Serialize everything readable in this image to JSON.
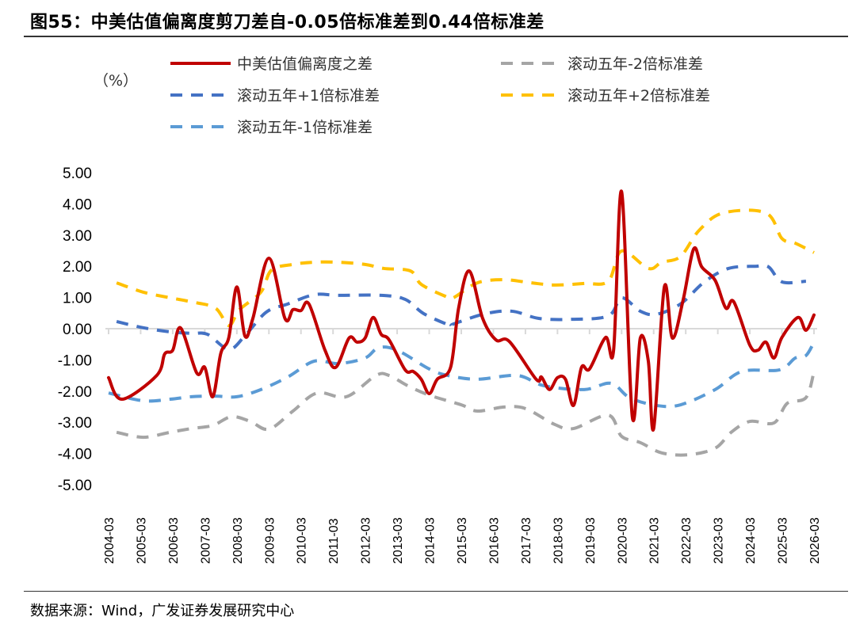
{
  "title": "图55：中美估值偏离度剪刀差自-0.05倍标准差到0.44倍标准差",
  "source": "数据来源：Wind，广发证券发展研究中心",
  "chart_data": {
    "type": "line",
    "title": "图55：中美估值偏离度剪刀差自-0.05倍标准差到0.44倍标准差",
    "ylabel": "（%）",
    "xlabel": "",
    "ylim": [
      -5,
      5
    ],
    "yticks": [
      "5.00",
      "4.00",
      "3.00",
      "2.00",
      "1.00",
      "0.00",
      "-1.00",
      "-2.00",
      "-3.00",
      "-4.00",
      "-5.00"
    ],
    "xticks": [
      "2004-03",
      "2005-03",
      "2006-03",
      "2007-03",
      "2008-03",
      "2009-03",
      "2010-03",
      "2011-03",
      "2012-03",
      "2013-03",
      "2014-03",
      "2015-03",
      "2016-03",
      "2017-03",
      "2018-03",
      "2019-03",
      "2020-03",
      "2021-03",
      "2022-03",
      "2023-03",
      "2024-03",
      "2025-03",
      "2026-03"
    ],
    "grid": false,
    "legend_position": "top",
    "series": [
      {
        "name": "中美估值偏离度之差",
        "color": "#C00000",
        "dash": false,
        "points": [
          [
            "2004-03",
            -1.57
          ],
          [
            "2004-08",
            -2.26
          ],
          [
            "2005-09",
            -1.5
          ],
          [
            "2005-12",
            -0.81
          ],
          [
            "2006-03",
            -0.69
          ],
          [
            "2006-06",
            0.02
          ],
          [
            "2006-12",
            -1.42
          ],
          [
            "2007-03",
            -1.24
          ],
          [
            "2007-06",
            -2.18
          ],
          [
            "2007-09",
            -0.79
          ],
          [
            "2007-12",
            -0.28
          ],
          [
            "2008-03",
            1.34
          ],
          [
            "2008-06",
            -0.23
          ],
          [
            "2008-09",
            0.33
          ],
          [
            "2009-03",
            2.26
          ],
          [
            "2009-09",
            0.33
          ],
          [
            "2009-12",
            0.61
          ],
          [
            "2010-03",
            0.58
          ],
          [
            "2010-06",
            0.79
          ],
          [
            "2010-12",
            -0.69
          ],
          [
            "2011-04",
            -1.24
          ],
          [
            "2011-09",
            -0.3
          ],
          [
            "2011-12",
            -0.43
          ],
          [
            "2012-03",
            -0.3
          ],
          [
            "2012-06",
            0.36
          ],
          [
            "2012-09",
            -0.18
          ],
          [
            "2012-12",
            -0.36
          ],
          [
            "2013-06",
            -1.32
          ],
          [
            "2013-09",
            -1.37
          ],
          [
            "2013-12",
            -1.62
          ],
          [
            "2014-03",
            -2.08
          ],
          [
            "2014-06",
            -1.62
          ],
          [
            "2014-11",
            -1.24
          ],
          [
            "2015-02",
            0.66
          ],
          [
            "2015-06",
            1.85
          ],
          [
            "2015-11",
            0.33
          ],
          [
            "2016-04",
            -0.36
          ],
          [
            "2016-09",
            -0.41
          ],
          [
            "2017-07",
            -1.62
          ],
          [
            "2017-09",
            -1.55
          ],
          [
            "2017-12",
            -1.95
          ],
          [
            "2018-03",
            -1.57
          ],
          [
            "2018-06",
            -1.62
          ],
          [
            "2018-09",
            -2.46
          ],
          [
            "2018-12",
            -1.24
          ],
          [
            "2019-03",
            -1.29
          ],
          [
            "2019-09",
            -0.28
          ],
          [
            "2019-12",
            -0.69
          ],
          [
            "2020-03",
            4.39
          ],
          [
            "2020-07",
            -2.82
          ],
          [
            "2020-10",
            -0.3
          ],
          [
            "2021-01",
            -1.04
          ],
          [
            "2021-03",
            -3.2
          ],
          [
            "2021-07",
            1.34
          ],
          [
            "2021-10",
            -0.3
          ],
          [
            "2022-02",
            0.91
          ],
          [
            "2022-06",
            2.56
          ],
          [
            "2022-09",
            1.98
          ],
          [
            "2023-02",
            1.55
          ],
          [
            "2023-06",
            0.66
          ],
          [
            "2023-09",
            0.86
          ],
          [
            "2024-03",
            -0.53
          ],
          [
            "2024-06",
            -0.69
          ],
          [
            "2024-09",
            -0.43
          ],
          [
            "2024-12",
            -0.94
          ],
          [
            "2025-03",
            -0.28
          ],
          [
            "2025-09",
            0.36
          ],
          [
            "2025-12",
            -0.05
          ],
          [
            "2026-03",
            0.44
          ]
        ]
      },
      {
        "name": "滚动五年-2倍标准差",
        "color": "#A5A5A5",
        "dash": true,
        "points": [
          [
            "2004-06",
            -3.32
          ],
          [
            "2005-04",
            -3.48
          ],
          [
            "2006-02",
            -3.32
          ],
          [
            "2006-10",
            -3.2
          ],
          [
            "2007-06",
            -3.1
          ],
          [
            "2008-01",
            -2.82
          ],
          [
            "2008-08",
            -2.97
          ],
          [
            "2009-03",
            -3.22
          ],
          [
            "2009-12",
            -2.64
          ],
          [
            "2010-09",
            -2.06
          ],
          [
            "2011-08",
            -2.18
          ],
          [
            "2012-07",
            -1.5
          ],
          [
            "2012-12",
            -1.5
          ],
          [
            "2013-07",
            -1.83
          ],
          [
            "2014-03",
            -2.13
          ],
          [
            "2015-03",
            -2.44
          ],
          [
            "2015-09",
            -2.64
          ],
          [
            "2016-07",
            -2.51
          ],
          [
            "2017-03",
            -2.56
          ],
          [
            "2018-02",
            -3.07
          ],
          [
            "2018-09",
            -3.2
          ],
          [
            "2019-10",
            -2.77
          ],
          [
            "2020-03",
            -3.45
          ],
          [
            "2020-10",
            -3.65
          ],
          [
            "2021-06",
            -3.98
          ],
          [
            "2022-04",
            -4.04
          ],
          [
            "2023-02",
            -3.83
          ],
          [
            "2023-08",
            -3.32
          ],
          [
            "2024-03",
            -2.97
          ],
          [
            "2024-12",
            -3.02
          ],
          [
            "2025-05",
            -2.39
          ],
          [
            "2025-12",
            -2.21
          ],
          [
            "2026-03",
            -1.37
          ]
        ]
      },
      {
        "name": "滚动五年+1倍标准差",
        "color": "#4472C4",
        "dash": true,
        "points": [
          [
            "2004-06",
            0.23
          ],
          [
            "2005-04",
            0.03
          ],
          [
            "2006-02",
            -0.1
          ],
          [
            "2006-10",
            -0.15
          ],
          [
            "2007-04",
            -0.18
          ],
          [
            "2007-12",
            -0.66
          ],
          [
            "2008-06",
            -0.23
          ],
          [
            "2009-02",
            0.53
          ],
          [
            "2009-10",
            0.79
          ],
          [
            "2010-08",
            1.09
          ],
          [
            "2011-05",
            1.07
          ],
          [
            "2012-09",
            1.07
          ],
          [
            "2013-06",
            0.94
          ],
          [
            "2014-01",
            0.48
          ],
          [
            "2014-11",
            0.1
          ],
          [
            "2014-12",
            0.15
          ],
          [
            "2015-12",
            0.48
          ],
          [
            "2016-10",
            0.56
          ],
          [
            "2017-08",
            0.33
          ],
          [
            "2018-08",
            0.3
          ],
          [
            "2019-10",
            0.41
          ],
          [
            "2020-03",
            0.99
          ],
          [
            "2020-10",
            0.56
          ],
          [
            "2021-04",
            0.46
          ],
          [
            "2022-01",
            0.79
          ],
          [
            "2022-10",
            1.5
          ],
          [
            "2023-07",
            1.93
          ],
          [
            "2024-05",
            2.0
          ],
          [
            "2024-10",
            1.98
          ],
          [
            "2025-03",
            1.5
          ],
          [
            "2025-12",
            1.52
          ]
        ]
      },
      {
        "name": "滚动五年+2倍标准差",
        "color": "#FFC000",
        "dash": true,
        "points": [
          [
            "2004-06",
            1.47
          ],
          [
            "2005-04",
            1.17
          ],
          [
            "2006-02",
            0.99
          ],
          [
            "2006-10",
            0.86
          ],
          [
            "2007-07",
            0.66
          ],
          [
            "2007-12",
            0.1
          ],
          [
            "2008-04",
            0.61
          ],
          [
            "2008-12",
            1.17
          ],
          [
            "2009-04",
            1.88
          ],
          [
            "2009-12",
            2.06
          ],
          [
            "2010-08",
            2.13
          ],
          [
            "2011-05",
            2.13
          ],
          [
            "2012-03",
            2.06
          ],
          [
            "2012-10",
            1.93
          ],
          [
            "2013-08",
            1.85
          ],
          [
            "2013-12",
            1.42
          ],
          [
            "2014-09",
            1.04
          ],
          [
            "2014-12",
            0.99
          ],
          [
            "2015-09",
            1.47
          ],
          [
            "2016-07",
            1.57
          ],
          [
            "2017-05",
            1.47
          ],
          [
            "2018-02",
            1.4
          ],
          [
            "2019-01",
            1.45
          ],
          [
            "2019-10",
            1.52
          ],
          [
            "2020-03",
            2.49
          ],
          [
            "2021-01",
            1.93
          ],
          [
            "2021-06",
            2.13
          ],
          [
            "2022-01",
            2.31
          ],
          [
            "2022-08",
            3.15
          ],
          [
            "2023-05",
            3.71
          ],
          [
            "2024-09",
            3.71
          ],
          [
            "2025-03",
            2.89
          ],
          [
            "2025-08",
            2.74
          ],
          [
            "2026-03",
            2.44
          ]
        ]
      },
      {
        "name": "滚动五年-1倍标准差",
        "color": "#5B9BD5",
        "dash": true,
        "points": [
          [
            "2004-03",
            -2.06
          ],
          [
            "2005-04",
            -2.31
          ],
          [
            "2006-02",
            -2.26
          ],
          [
            "2006-10",
            -2.18
          ],
          [
            "2007-07",
            -2.16
          ],
          [
            "2008-03",
            -2.18
          ],
          [
            "2008-12",
            -1.95
          ],
          [
            "2009-10",
            -1.55
          ],
          [
            "2010-08",
            -1.04
          ],
          [
            "2011-05",
            -1.12
          ],
          [
            "2012-03",
            -0.94
          ],
          [
            "2012-08",
            -0.61
          ],
          [
            "2013-03",
            -0.69
          ],
          [
            "2014-03",
            -1.29
          ],
          [
            "2014-10",
            -1.5
          ],
          [
            "2015-09",
            -1.62
          ],
          [
            "2016-12",
            -1.5
          ],
          [
            "2017-10",
            -1.83
          ],
          [
            "2019-01",
            -1.95
          ],
          [
            "2019-11",
            -1.75
          ],
          [
            "2020-06",
            -2.21
          ],
          [
            "2021-04",
            -2.46
          ],
          [
            "2022-01",
            -2.44
          ],
          [
            "2023-02",
            -1.95
          ],
          [
            "2023-12",
            -1.37
          ],
          [
            "2025-02",
            -1.32
          ],
          [
            "2025-08",
            -0.94
          ],
          [
            "2025-12",
            -0.86
          ],
          [
            "2026-03",
            -0.43
          ]
        ]
      }
    ]
  }
}
